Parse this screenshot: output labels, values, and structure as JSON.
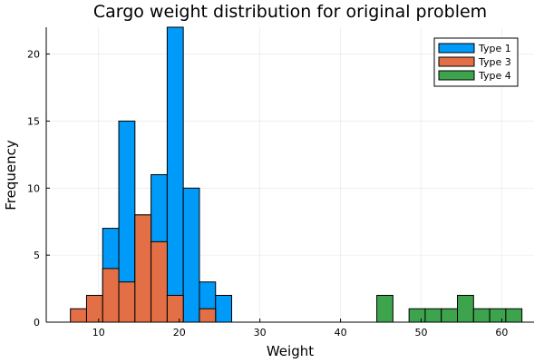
{
  "chart_data": {
    "type": "bar",
    "title": "Cargo weight distribution for original problem",
    "xlabel": "Weight",
    "ylabel": "Frequency",
    "xlim": [
      3.5,
      64
    ],
    "ylim": [
      0,
      22
    ],
    "xticks": [
      10,
      20,
      30,
      40,
      50,
      60
    ],
    "yticks": [
      0,
      5,
      10,
      15,
      20
    ],
    "grid": true,
    "legend_position": "top-right",
    "bin_width": 2,
    "series": [
      {
        "name": "Type 1",
        "color": "#009af9",
        "bins": [
          {
            "x0": 10.5,
            "x1": 12.5,
            "count": 7
          },
          {
            "x0": 12.5,
            "x1": 14.5,
            "count": 15
          },
          {
            "x0": 14.5,
            "x1": 16.5,
            "count": 8
          },
          {
            "x0": 16.5,
            "x1": 18.5,
            "count": 11
          },
          {
            "x0": 18.5,
            "x1": 20.5,
            "count": 22
          },
          {
            "x0": 20.5,
            "x1": 22.5,
            "count": 10
          },
          {
            "x0": 22.5,
            "x1": 24.5,
            "count": 3
          },
          {
            "x0": 24.5,
            "x1": 26.5,
            "count": 2
          }
        ]
      },
      {
        "name": "Type 3",
        "color": "#e26f46",
        "bins": [
          {
            "x0": 6.5,
            "x1": 8.5,
            "count": 1
          },
          {
            "x0": 8.5,
            "x1": 10.5,
            "count": 2
          },
          {
            "x0": 10.5,
            "x1": 12.5,
            "count": 4
          },
          {
            "x0": 12.5,
            "x1": 14.5,
            "count": 3
          },
          {
            "x0": 14.5,
            "x1": 16.5,
            "count": 8
          },
          {
            "x0": 16.5,
            "x1": 18.5,
            "count": 6
          },
          {
            "x0": 18.5,
            "x1": 20.5,
            "count": 2
          },
          {
            "x0": 22.5,
            "x1": 24.5,
            "count": 1
          }
        ]
      },
      {
        "name": "Type 4",
        "color": "#3da44d",
        "bins": [
          {
            "x0": 44.5,
            "x1": 46.5,
            "count": 2
          },
          {
            "x0": 48.5,
            "x1": 50.5,
            "count": 1
          },
          {
            "x0": 50.5,
            "x1": 52.5,
            "count": 1
          },
          {
            "x0": 52.5,
            "x1": 54.5,
            "count": 1
          },
          {
            "x0": 54.5,
            "x1": 56.5,
            "count": 2
          },
          {
            "x0": 56.5,
            "x1": 58.5,
            "count": 1
          },
          {
            "x0": 58.5,
            "x1": 60.5,
            "count": 1
          },
          {
            "x0": 60.5,
            "x1": 62.5,
            "count": 1
          }
        ]
      }
    ]
  }
}
